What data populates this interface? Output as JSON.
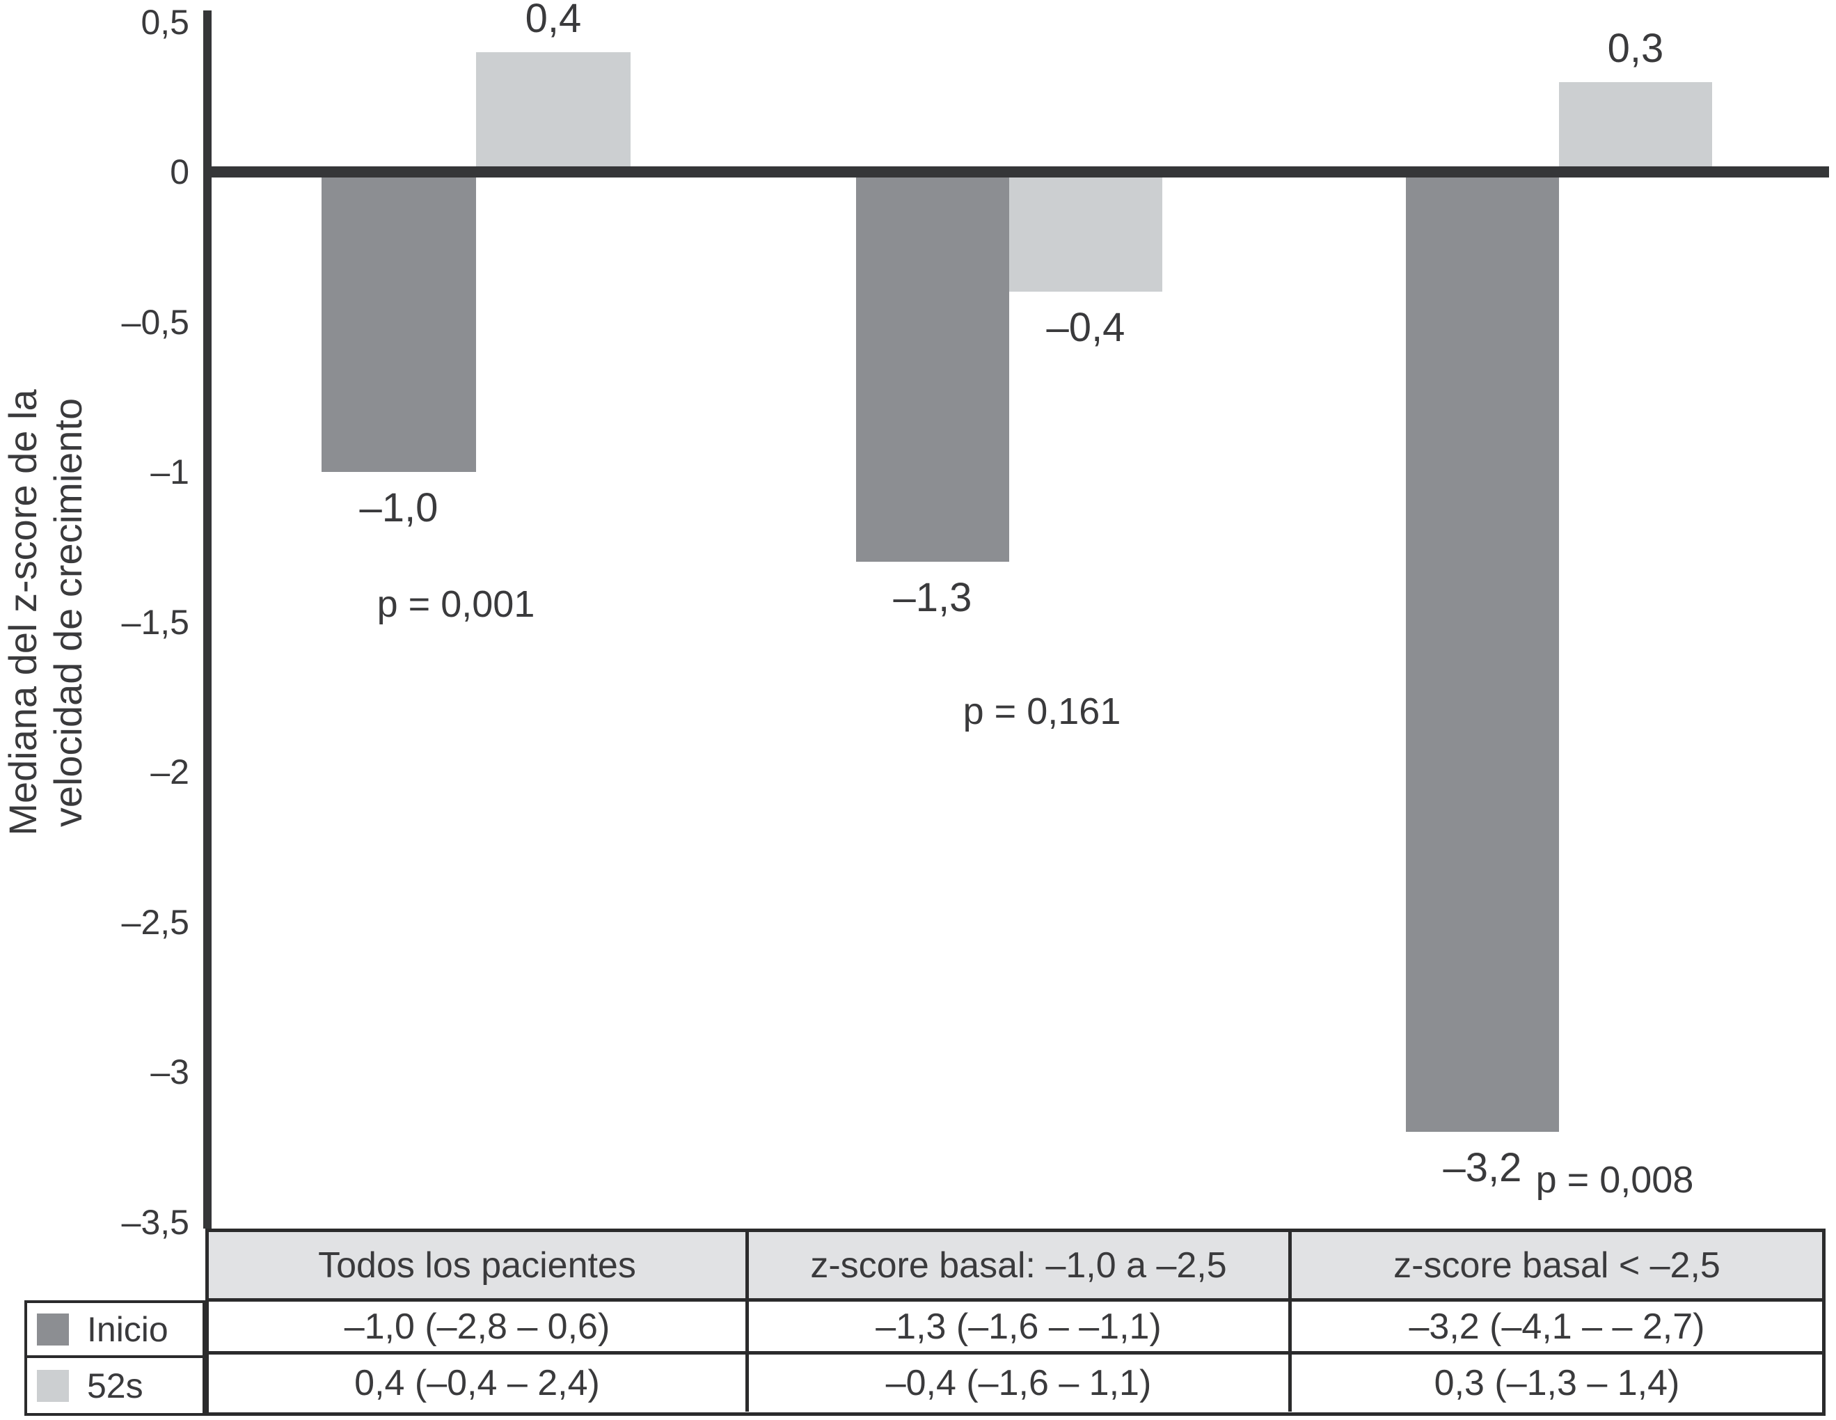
{
  "chart_data": {
    "type": "bar",
    "title": "",
    "ylabel_lines": [
      "Mediana del z-score de la",
      "velocidad de crecimiento"
    ],
    "ylabel": "Mediana del z-score de la velocidad de crecimiento",
    "ylim": [
      -3.5,
      0.5
    ],
    "grid": false,
    "legend_position": "bottom-left table",
    "y_ticks": [
      {
        "label": "0,5",
        "value": 0.5
      },
      {
        "label": "0",
        "value": 0.0
      },
      {
        "label": "–0,5",
        "value": -0.5
      },
      {
        "label": "–1",
        "value": -1.0
      },
      {
        "label": "–1,5",
        "value": -1.5
      },
      {
        "label": "–2",
        "value": -2.0
      },
      {
        "label": "–2,5",
        "value": -2.5
      },
      {
        "label": "–3",
        "value": -3.0
      },
      {
        "label": "–3,5",
        "value": -3.5
      }
    ],
    "categories": [
      "Todos los pacientes",
      "z-score basal: –1,0 a –2,5",
      "z-score basal < –2,5"
    ],
    "series": [
      {
        "name": "Inicio",
        "color": "#8c8e92",
        "values": [
          -1.0,
          -1.3,
          -3.2
        ],
        "value_labels": [
          "–1,0",
          "–1,3",
          "–3,2"
        ]
      },
      {
        "name": "52s",
        "color": "#cccfd1",
        "values": [
          0.4,
          -0.4,
          0.3
        ],
        "value_labels": [
          "0,4",
          "–0,4",
          "0,3"
        ]
      }
    ],
    "p_values": [
      "p = 0,001",
      "p = 0,161",
      "p = 0,008"
    ]
  },
  "table": {
    "header": [
      "Todos los pacientes",
      "z-score basal: –1,0 a –2,5",
      "z-score basal < –2,5"
    ],
    "rows": [
      {
        "legend": "Inicio",
        "cells": [
          "–1,0 (–2,8 – 0,6)",
          "–1,3 (–1,6 – –1,1)",
          "–3,2 (–4,1 – – 2,7)"
        ]
      },
      {
        "legend": "52s",
        "cells": [
          "0,4 (–0,4 – 2,4)",
          "–0,4 (–1,6 – 1,1)",
          "0,3 (–1,3 – 1,4)"
        ]
      }
    ]
  },
  "colors": {
    "bar_dark": "#8c8e92",
    "bar_light": "#cccfd1",
    "axis": "#353638",
    "table_border": "#2b2b2c",
    "header_fill": "#e1e2e4",
    "text": "#3a3a3c",
    "background": "#ffffff"
  }
}
